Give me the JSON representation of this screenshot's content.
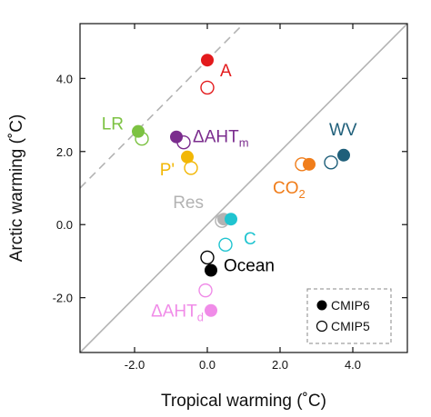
{
  "chart_data": {
    "type": "scatter",
    "xlabel": "Tropical warming (˚C)",
    "ylabel": "Arctic warming (˚C)",
    "xlim": [
      -3.5,
      5.5
    ],
    "ylim": [
      -3.5,
      5.5
    ],
    "xticks": [
      -2.0,
      0.0,
      2.0,
      4.0
    ],
    "yticks": [
      -2.0,
      0.0,
      2.0,
      4.0
    ],
    "xtick_labels": [
      "-2.0",
      "0.0",
      "2.0",
      "4.0"
    ],
    "ytick_labels": [
      "-2.0",
      "0.0",
      "2.0",
      "4.0"
    ],
    "grid": false,
    "reference_lines": [
      {
        "style": "solid",
        "color": "#b3b3b3",
        "slope": 1,
        "intercept": 0
      },
      {
        "style": "dashed",
        "color": "#b3b3b3",
        "slope": 1,
        "intercept": 4.5
      }
    ],
    "legend": {
      "position": "bottom-right",
      "entries": [
        {
          "label": "CMIP6",
          "marker": "filled"
        },
        {
          "label": "CMIP5",
          "marker": "open"
        }
      ]
    },
    "series": [
      {
        "label": "A",
        "color": "#e31a1c",
        "cmip6": [
          0.0,
          4.5
        ],
        "cmip5": [
          0.0,
          3.75
        ]
      },
      {
        "label": "LR",
        "color": "#7cc242",
        "cmip6": [
          -1.9,
          2.55
        ],
        "cmip5": [
          -1.8,
          2.35
        ]
      },
      {
        "label": "ΔAHT",
        "sub": "m",
        "color": "#7b2d8e",
        "cmip6": [
          -0.85,
          2.4
        ],
        "cmip5": [
          -0.65,
          2.25
        ]
      },
      {
        "label": "P'",
        "color": "#f2b705",
        "cmip6": [
          -0.55,
          1.85
        ],
        "cmip5": [
          -0.45,
          1.55
        ]
      },
      {
        "label": "WV",
        "color": "#1f5f7a",
        "cmip6": [
          3.75,
          1.9
        ],
        "cmip5": [
          3.4,
          1.7
        ]
      },
      {
        "label": "CO",
        "sub": "2",
        "color": "#f07d1a",
        "cmip6": [
          2.8,
          1.65
        ],
        "cmip5": [
          2.6,
          1.65
        ]
      },
      {
        "label": "Res",
        "color": "#b3b3b3",
        "cmip6": [
          0.45,
          0.15
        ],
        "cmip5": [
          0.4,
          0.1
        ]
      },
      {
        "label": "C",
        "color": "#20c4d0",
        "cmip6": [
          0.65,
          0.15
        ],
        "cmip5": [
          0.5,
          -0.55
        ]
      },
      {
        "label": "Ocean",
        "color": "#000000",
        "cmip6": [
          0.1,
          -1.25
        ],
        "cmip5": [
          0.0,
          -0.9
        ]
      },
      {
        "label": "ΔAHT",
        "sub": "d",
        "color": "#f08ce8",
        "cmip6": [
          0.1,
          -2.35
        ],
        "cmip5": [
          -0.05,
          -1.8
        ]
      }
    ]
  }
}
